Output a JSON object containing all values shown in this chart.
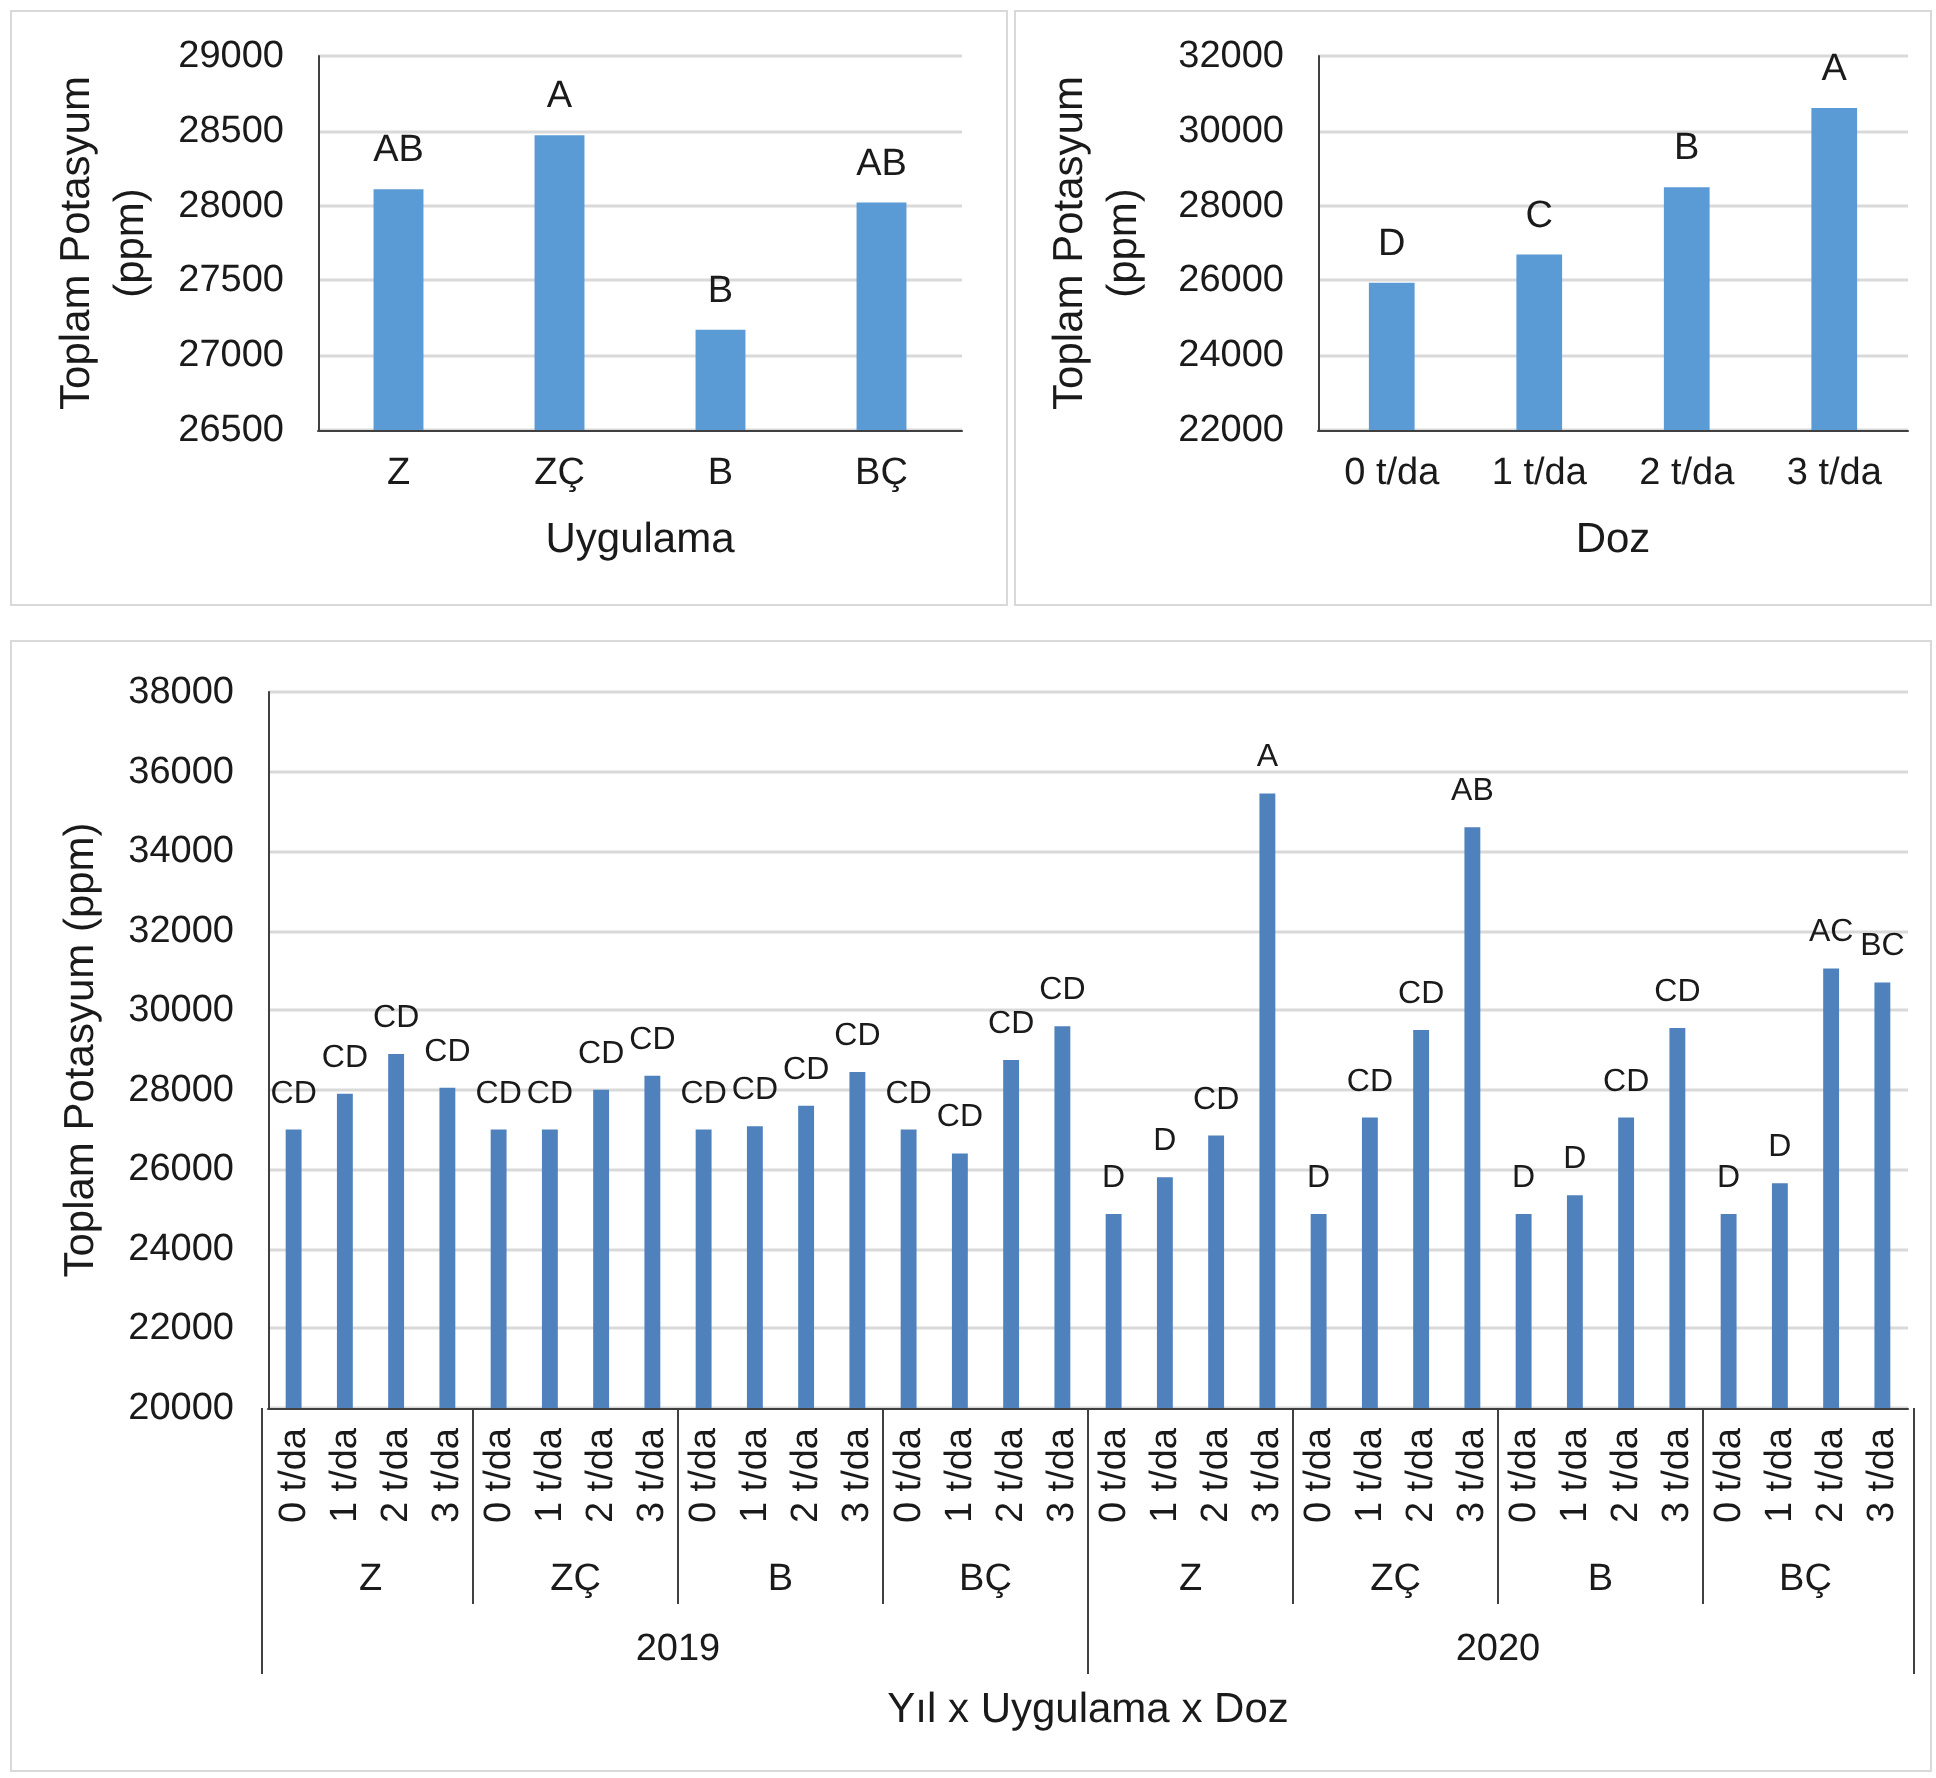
{
  "chart_data": [
    {
      "type": "bar",
      "ylabel": "Toplam Potasyum (ppm)",
      "xlabel": "Uygulama",
      "categories": [
        "Z",
        "ZÇ",
        "B",
        "BÇ"
      ],
      "values": [
        28110,
        28470,
        27170,
        28020
      ],
      "value_labels": [
        "AB",
        "A",
        "B",
        "AB"
      ],
      "color": "#5b9bd5",
      "ylim": [
        26500,
        29000
      ],
      "yticks": [
        26500,
        27000,
        27500,
        28000,
        28500,
        29000
      ],
      "grid": "y"
    },
    {
      "type": "bar",
      "ylabel": "Toplam Potasyum (ppm)",
      "xlabel": "Doz",
      "categories": [
        "0 t/da",
        "1 t/da",
        "2 t/da",
        "3 t/da"
      ],
      "values": [
        25940,
        26690,
        28490,
        30610
      ],
      "value_labels": [
        "D",
        "C",
        "B",
        "A"
      ],
      "color": "#5b9bd5",
      "ylim": [
        22000,
        32000
      ],
      "yticks": [
        22000,
        24000,
        26000,
        28000,
        30000,
        32000
      ],
      "grid": "y"
    },
    {
      "type": "bar",
      "ylabel": "Toplam Potasyum (ppm)",
      "xlabel": "Yıl x Uygulama x Doz",
      "categories": [
        "0 t/da",
        "1 t/da",
        "2 t/da",
        "3 t/da",
        "0 t/da",
        "1 t/da",
        "2 t/da",
        "3 t/da",
        "0 t/da",
        "1 t/da",
        "2 t/da",
        "3 t/da",
        "0 t/da",
        "1 t/da",
        "2 t/da",
        "3 t/da",
        "0 t/da",
        "1 t/da",
        "2 t/da",
        "3 t/da",
        "0 t/da",
        "1 t/da",
        "2 t/da",
        "3 t/da",
        "0 t/da",
        "1 t/da",
        "2 t/da",
        "3 t/da",
        "0 t/da",
        "1 t/da",
        "2 t/da",
        "3 t/da"
      ],
      "values": [
        27000,
        27900,
        28900,
        28050,
        27000,
        27000,
        28000,
        28350,
        27000,
        27080,
        27600,
        28450,
        27000,
        26400,
        28750,
        29600,
        24880,
        25800,
        26850,
        35450,
        24880,
        27300,
        29500,
        34600,
        24880,
        25350,
        27300,
        29550,
        24880,
        25650,
        31050,
        30700
      ],
      "value_labels": [
        "CD",
        "CD",
        "CD",
        "CD",
        "CD",
        "CD",
        "CD",
        "CD",
        "CD",
        "CD",
        "CD",
        "CD",
        "CD",
        "CD",
        "CD",
        "CD",
        "D",
        "D",
        "CD",
        "A",
        "D",
        "CD",
        "CD",
        "AB",
        "D",
        "D",
        "CD",
        "CD",
        "D",
        "D",
        "AC",
        "BC"
      ],
      "annotations": [
        "Z",
        "ZÇ",
        "B",
        "BÇ",
        "Z",
        "ZÇ",
        "B",
        "BÇ",
        "2019",
        "2020"
      ],
      "color": "#4f81bd",
      "ylim": [
        20000,
        38000
      ],
      "yticks": [
        20000,
        22000,
        24000,
        26000,
        28000,
        30000,
        32000,
        34000,
        36000,
        38000
      ],
      "grid": "y"
    }
  ]
}
